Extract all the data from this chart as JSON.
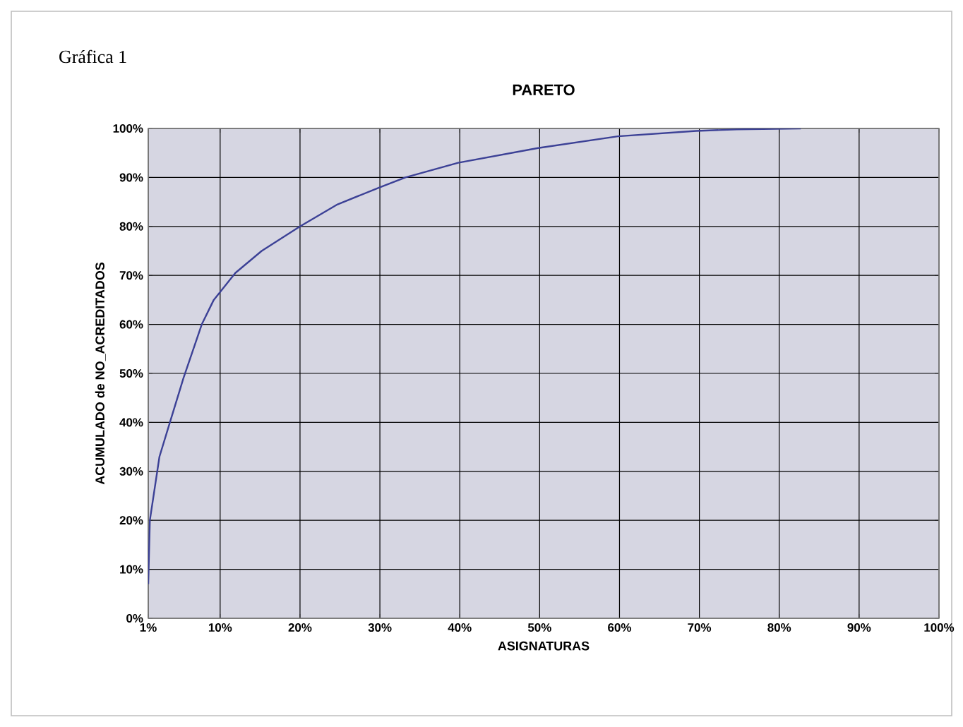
{
  "chart_data": {
    "type": "line",
    "title": "PARETO",
    "xlabel": "ASIGNATURAS",
    "ylabel": "ACUMULADO de NO_ACREDITADOS",
    "annotations": [
      "Gráfica 1"
    ],
    "x": [
      1,
      1.2,
      2.4,
      3.9,
      5.4,
      7.7,
      9.2,
      11.9,
      15.2,
      20,
      24.7,
      30,
      33.2,
      39.8,
      49.8,
      59.8,
      69.6,
      74.7,
      82.7
    ],
    "series": [
      {
        "color": "#3c4196",
        "values": [
          7,
          20,
          33,
          41,
          49,
          60,
          65,
          70.5,
          75,
          80,
          84.5,
          88,
          90,
          93,
          96,
          98.4,
          99.5,
          99.8,
          100
        ]
      }
    ],
    "xlim": [
      1,
      100
    ],
    "ylim": [
      0,
      100
    ],
    "xticks": [
      {
        "value": 1,
        "label": "1%"
      },
      {
        "value": 10,
        "label": "10%"
      },
      {
        "value": 20,
        "label": "20%"
      },
      {
        "value": 30,
        "label": "30%"
      },
      {
        "value": 40,
        "label": "40%"
      },
      {
        "value": 50,
        "label": "50%"
      },
      {
        "value": 60,
        "label": "60%"
      },
      {
        "value": 70,
        "label": "70%"
      },
      {
        "value": 80,
        "label": "80%"
      },
      {
        "value": 90,
        "label": "90%"
      },
      {
        "value": 100,
        "label": "100%"
      }
    ],
    "yticks": [
      {
        "value": 0,
        "label": "0%"
      },
      {
        "value": 10,
        "label": "10%"
      },
      {
        "value": 20,
        "label": "20%"
      },
      {
        "value": 30,
        "label": "30%"
      },
      {
        "value": 40,
        "label": "40%"
      },
      {
        "value": 50,
        "label": "50%"
      },
      {
        "value": 60,
        "label": "60%"
      },
      {
        "value": 70,
        "label": "70%"
      },
      {
        "value": 80,
        "label": "80%"
      },
      {
        "value": 90,
        "label": "90%"
      },
      {
        "value": 100,
        "label": "100%"
      }
    ],
    "grid": true,
    "legend": false,
    "marker": "none",
    "line_style": "solid"
  }
}
